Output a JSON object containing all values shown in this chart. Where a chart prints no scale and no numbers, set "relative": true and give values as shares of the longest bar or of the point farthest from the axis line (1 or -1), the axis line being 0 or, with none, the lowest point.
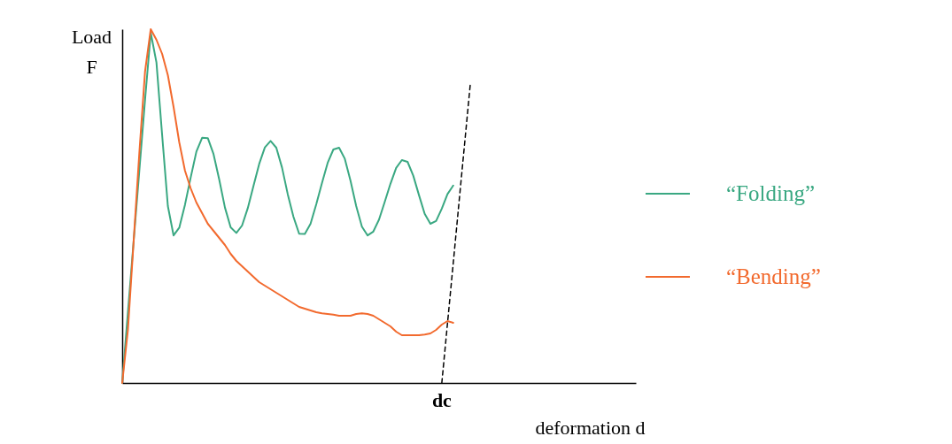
{
  "chart_data": {
    "type": "line",
    "relative": true,
    "xlabel": "deformation  d",
    "ylabel": "Load F",
    "legend": "right",
    "annotations": [
      "dc"
    ],
    "categories": [
      null,
      null,
      null,
      null,
      null,
      null,
      null,
      null,
      null,
      null,
      null,
      null,
      null,
      null,
      null,
      null,
      null,
      null,
      null,
      null,
      null,
      null,
      null,
      null,
      null,
      null,
      null,
      null,
      null,
      null,
      null,
      null,
      null,
      null,
      null,
      null,
      null,
      null,
      null,
      null,
      null,
      null,
      null,
      null,
      null,
      null,
      null,
      null,
      null,
      null,
      null,
      null,
      null,
      null,
      null,
      null,
      null,
      null,
      null,
      null,
      null,
      null,
      null,
      null,
      null,
      null,
      null,
      null,
      null,
      null,
      null,
      null,
      null,
      null,
      null,
      null,
      null,
      null,
      null,
      null,
      null,
      null,
      null,
      null,
      null,
      null,
      null,
      null,
      null,
      null,
      null
    ],
    "series": [
      {
        "name": "“Folding”",
        "color": "#3aa882",
        "values": [
          0,
          0.2,
          0.4,
          0.6,
          0.8,
          0.99,
          0.906,
          0.7,
          0.5,
          0.417,
          0.439,
          0.504,
          0.581,
          0.654,
          0.693,
          0.692,
          0.647,
          0.575,
          0.496,
          0.44,
          0.424,
          0.445,
          0.494,
          0.557,
          0.619,
          0.666,
          0.684,
          0.665,
          0.609,
          0.534,
          0.47,
          0.422,
          0.421,
          0.45,
          0.505,
          0.565,
          0.622,
          0.66,
          0.665,
          0.634,
          0.572,
          0.5,
          0.442,
          0.417,
          0.428,
          0.462,
          0.512,
          0.563,
          0.608,
          0.63,
          0.625,
          0.586,
          0.531,
          0.478,
          0.45,
          0.458,
          0.493,
          0.534,
          0.558,
          null,
          null,
          null,
          null,
          null,
          null,
          null,
          null,
          null,
          null,
          null,
          null,
          null,
          null,
          null,
          null,
          null,
          null,
          null,
          null,
          null,
          null,
          null,
          null,
          null,
          null,
          null,
          null,
          null,
          null,
          null,
          null
        ]
      },
      {
        "name": "“Bending”",
        "color": "#f26a2e",
        "values": [
          0,
          0.15,
          0.4,
          0.65,
          0.88,
          1,
          0.97,
          0.93,
          0.87,
          0.78,
          0.68,
          0.6,
          0.55,
          0.51,
          0.48,
          0.45,
          0.43,
          0.41,
          0.39,
          0.365,
          0.345,
          0.33,
          0.315,
          0.3,
          0.285,
          0.275,
          0.265,
          0.255,
          0.245,
          0.235,
          0.225,
          0.215,
          0.21,
          0.205,
          0.2,
          0.197,
          0.195,
          0.193,
          0.19,
          0.19,
          0.19,
          0.195,
          0.197,
          0.195,
          0.19,
          0.18,
          0.17,
          0.16,
          0.145,
          0.135,
          0.135,
          0.135,
          0.135,
          0.137,
          0.14,
          0.15,
          0.165,
          0.175,
          0.17,
          null,
          null,
          null,
          null,
          null,
          null,
          null,
          null,
          null,
          null,
          null,
          null,
          null,
          null,
          null,
          null,
          null,
          null,
          null,
          null,
          null,
          null,
          null,
          null,
          null,
          null,
          null,
          null,
          null,
          null,
          null,
          null
        ]
      },
      {
        "color": "#000000",
        "line_style": "dashed",
        "values": [
          null,
          null,
          null,
          null,
          null,
          null,
          null,
          null,
          null,
          null,
          null,
          null,
          null,
          null,
          null,
          null,
          null,
          null,
          null,
          null,
          null,
          null,
          null,
          null,
          null,
          null,
          null,
          null,
          null,
          null,
          null,
          null,
          null,
          null,
          null,
          null,
          null,
          null,
          null,
          null,
          null,
          null,
          null,
          null,
          null,
          null,
          null,
          null,
          null,
          null,
          null,
          null,
          null,
          null,
          null,
          null,
          0,
          0.169,
          0.338,
          0.508,
          0.677,
          0.846,
          null,
          null,
          null,
          null,
          null,
          null,
          null,
          null,
          null,
          null,
          null,
          null,
          null,
          null,
          null,
          null,
          null,
          null,
          null,
          null,
          null,
          null,
          null,
          null,
          null,
          null,
          null,
          null,
          null
        ]
      }
    ]
  }
}
